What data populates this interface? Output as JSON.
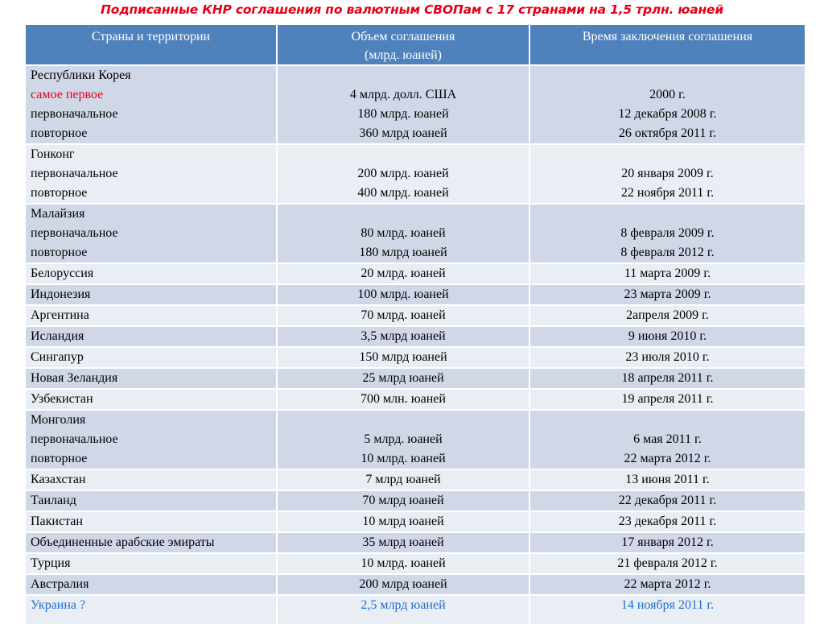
{
  "title": "Подписанные КНР соглашения по валютным СВОПам с 17 странами на 1,5 трлн. юаней",
  "headers": {
    "country": "Страны и территории",
    "amount_line1": "Объем соглашения",
    "amount_line2": "(млрд. юаней)",
    "date": "Время заключения соглашения"
  },
  "rows": [
    {
      "country": [
        "Республики Корея",
        "самое первое",
        "первоначальное",
        "повторное"
      ],
      "amount": [
        "4 млрд. долл. США",
        "180 млрд. юаней",
        "360 млрд юаней"
      ],
      "date": [
        "2000 г.",
        "12 декабря 2008 г.",
        "26 октября 2011 г."
      ]
    },
    {
      "country": [
        "Гонконг",
        "первоначальное",
        "повторное"
      ],
      "amount": [
        "200 млрд. юаней",
        "400 млрд. юаней"
      ],
      "date": [
        "20 января 2009 г.",
        "22 ноября 2011 г."
      ]
    },
    {
      "country": [
        "Малайзия",
        "первоначальное",
        "повторное"
      ],
      "amount": [
        "80 млрд. юаней",
        "180 млрд юаней"
      ],
      "date": [
        "8 февраля 2009 г.",
        "8 февраля 2012 г."
      ]
    },
    {
      "country": [
        "Белоруссия"
      ],
      "amount": [
        "20 млрд. юаней"
      ],
      "date": [
        "11 марта 2009 г."
      ]
    },
    {
      "country": [
        "Индонезия"
      ],
      "amount": [
        "100 млрд. юаней"
      ],
      "date": [
        "23 марта 2009 г."
      ]
    },
    {
      "country": [
        "Аргентина"
      ],
      "amount": [
        "70 млрд. юаней"
      ],
      "date": [
        "2апреля 2009 г."
      ]
    },
    {
      "country": [
        "Исландия"
      ],
      "amount": [
        "3,5 млрд юаней"
      ],
      "date": [
        "9 июня 2010 г."
      ]
    },
    {
      "country": [
        "Сингапур"
      ],
      "amount": [
        "150 млрд юаней"
      ],
      "date": [
        "23 июля 2010 г."
      ]
    },
    {
      "country": [
        "Новая Зеландия"
      ],
      "amount": [
        "25 млрд юаней"
      ],
      "date": [
        "18 апреля 2011 г."
      ]
    },
    {
      "country": [
        "Узбекистан"
      ],
      "amount": [
        "700 млн. юаней"
      ],
      "date": [
        "19 апреля 2011 г."
      ]
    },
    {
      "country": [
        "Монголия",
        "первоначальное",
        "повторное"
      ],
      "amount": [
        "5 млрд. юаней",
        "10 млрд. юаней"
      ],
      "date": [
        "6 мая 2011 г.",
        "22 марта 2012 г."
      ]
    },
    {
      "country": [
        "Казахстан"
      ],
      "amount": [
        "7 млрд юаней"
      ],
      "date": [
        "13 июня 2011 г."
      ]
    },
    {
      "country": [
        "Таиланд"
      ],
      "amount": [
        "70 млрд юаней"
      ],
      "date": [
        "22 декабря 2011 г."
      ]
    },
    {
      "country": [
        "Пакистан"
      ],
      "amount": [
        "10 млрд юаней"
      ],
      "date": [
        "23 декабря 2011 г."
      ]
    },
    {
      "country": [
        "Объединенные арабские эмираты"
      ],
      "amount": [
        "35 млрд юаней"
      ],
      "date": [
        "17 января 2012 г."
      ]
    },
    {
      "country": [
        "Турция"
      ],
      "amount": [
        "10 млрд. юаней"
      ],
      "date": [
        "21 февраля 2012 г."
      ]
    },
    {
      "country": [
        "Австралия"
      ],
      "amount": [
        "200 млрд юаней"
      ],
      "date": [
        "22 марта 2012 г."
      ]
    },
    {
      "country": [
        "Украина ?"
      ],
      "amount": [
        "2,5 млрд юаней"
      ],
      "date": [
        "14 ноября 2011 г."
      ]
    }
  ],
  "colors": {
    "title_red": "#e2001a",
    "header_blue": "#4f81bd",
    "row_dark": "#d0d8e8",
    "row_light": "#e9edf4",
    "link_blue": "#1f6fd1"
  }
}
